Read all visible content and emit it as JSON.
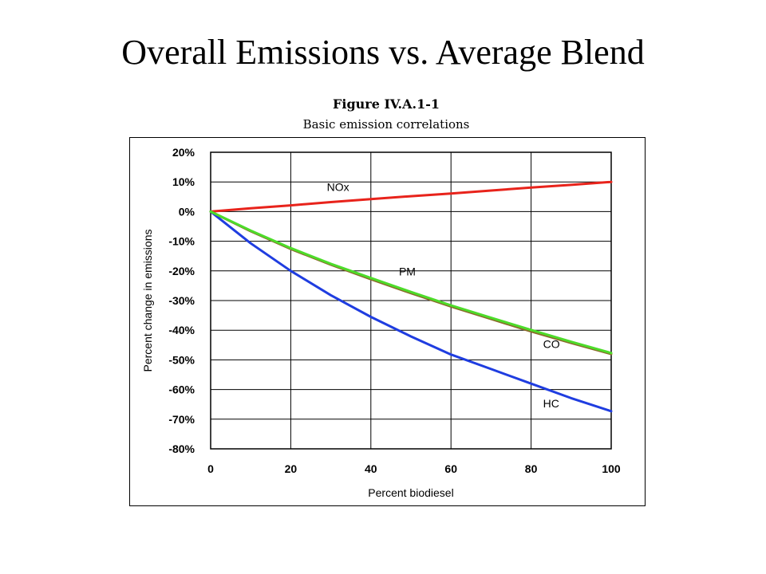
{
  "slide": {
    "title": "Overall Emissions vs. Average Blend"
  },
  "chart_data": {
    "type": "line",
    "title": "Figure IV.A.1-1",
    "subtitle": "Basic emission correlations",
    "xlabel": "Percent biodiesel",
    "ylabel": "Percent change in emissions",
    "xlim": [
      0,
      100
    ],
    "ylim": [
      -80,
      20
    ],
    "x_ticks": [
      0,
      20,
      40,
      60,
      80,
      100
    ],
    "y_ticks": [
      20,
      10,
      0,
      -10,
      -20,
      -30,
      -40,
      -50,
      -60,
      -70,
      -80
    ],
    "x_tick_labels": [
      "0",
      "20",
      "40",
      "60",
      "80",
      "100"
    ],
    "y_tick_labels": [
      "20%",
      "10%",
      "0%",
      "-10%",
      "-20%",
      "-30%",
      "-40%",
      "-50%",
      "-60%",
      "-70%",
      "-80%"
    ],
    "grid": true,
    "x": [
      0,
      10,
      20,
      30,
      40,
      50,
      60,
      70,
      80,
      90,
      100
    ],
    "series": [
      {
        "name": "NOx",
        "color": "#e8231b",
        "values": [
          0,
          1.1,
          2.1,
          3.2,
          4.2,
          5.2,
          6.1,
          7.1,
          8.1,
          9.0,
          10.0
        ]
      },
      {
        "name": "PM",
        "color": "#4ddc2a",
        "values": [
          0,
          -6.4,
          -12.3,
          -17.6,
          -22.4,
          -27.1,
          -31.6,
          -35.8,
          -39.9,
          -43.9,
          -47.7
        ]
      },
      {
        "name": "CO",
        "color": "#8a6a2a",
        "values": [
          0,
          -6.6,
          -12.6,
          -17.9,
          -22.8,
          -27.5,
          -32.0,
          -36.2,
          -40.4,
          -44.3,
          -48.0
        ]
      },
      {
        "name": "HC",
        "color": "#1f3de0",
        "values": [
          0,
          -10.7,
          -20.0,
          -28.2,
          -35.5,
          -42.1,
          -48.2,
          -53.1,
          -58.0,
          -62.9,
          -67.3
        ]
      }
    ],
    "annotations": [
      {
        "text": "NOx",
        "series": "NOx",
        "at_x": 29,
        "at_y": 7
      },
      {
        "text": "PM",
        "series": "PM",
        "at_x": 47,
        "at_y": -21.5
      },
      {
        "text": "CO",
        "series": "CO",
        "at_x": 83,
        "at_y": -46
      },
      {
        "text": "HC",
        "series": "HC",
        "at_x": 83,
        "at_y": -66
      }
    ]
  }
}
